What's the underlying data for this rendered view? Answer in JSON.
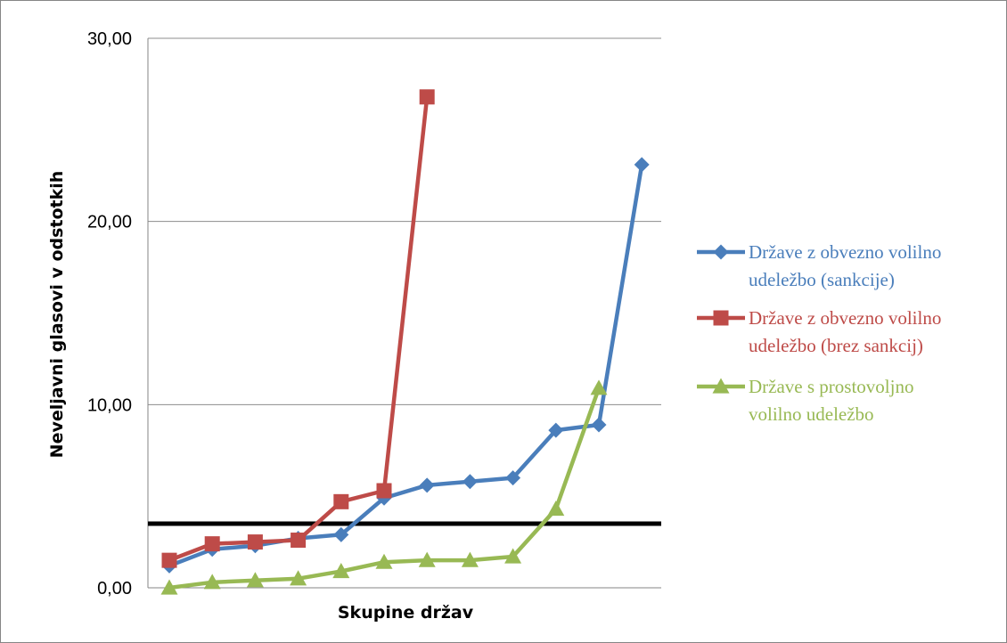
{
  "chart_data": {
    "type": "line",
    "title": "",
    "xlabel": "Skupine držav",
    "ylabel": "Neveljavni glasovi v odstotkih",
    "ylim": [
      0,
      30
    ],
    "yticks": [
      "0,00",
      "10,00",
      "20,00",
      "30,00"
    ],
    "grid": true,
    "legend_position": "right",
    "reference_line": {
      "value": 3.5,
      "color": "#000000"
    },
    "series": [
      {
        "name": "Države z obvezno volilno udeležbo (sankcije)",
        "legend_lines": [
          "Države z obvezno volilno",
          "udeležbo (sankcije)"
        ],
        "color": "#4a7ebb",
        "marker": "diamond",
        "x": [
          1,
          2,
          3,
          4,
          5,
          6,
          7,
          8,
          9,
          10,
          11,
          12
        ],
        "values": [
          1.2,
          2.1,
          2.3,
          2.7,
          2.9,
          4.9,
          5.6,
          5.8,
          6.0,
          8.6,
          8.9,
          23.1
        ]
      },
      {
        "name": "Države z obvezno volilno udeležbo (brez sankcij)",
        "legend_lines": [
          "Države z obvezno volilno",
          "udeležbo (brez sankcij)"
        ],
        "color": "#be4b48",
        "marker": "square",
        "x": [
          1,
          2,
          3,
          4,
          5,
          6,
          7
        ],
        "values": [
          1.5,
          2.4,
          2.5,
          2.6,
          4.7,
          5.3,
          26.8
        ]
      },
      {
        "name": "Države s prostovoljno volilno udeležbo",
        "legend_lines": [
          "Države s prostovoljno",
          "volilno udeležbo"
        ],
        "color": "#98b954",
        "marker": "triangle",
        "x": [
          1,
          2,
          3,
          4,
          5,
          6,
          7,
          8,
          9,
          10,
          11
        ],
        "values": [
          0.0,
          0.3,
          0.4,
          0.5,
          0.9,
          1.4,
          1.5,
          1.5,
          1.7,
          4.3,
          10.9
        ]
      }
    ]
  }
}
